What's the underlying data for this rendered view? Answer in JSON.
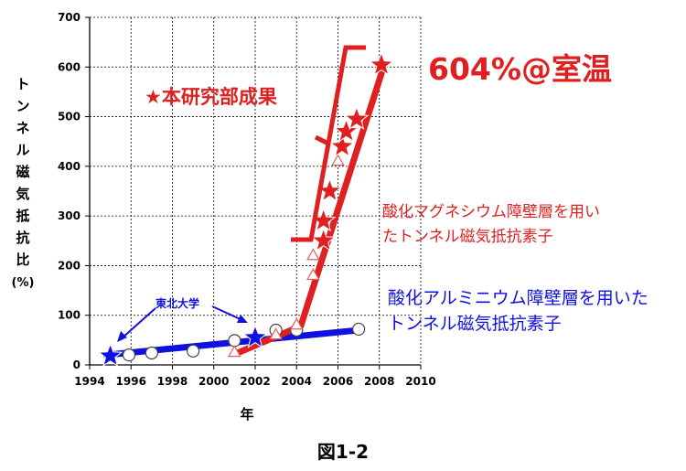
{
  "chart_data": {
    "type": "scatter",
    "xlabel": "年",
    "ylabel": "トンネル磁気抵抗比 (%)",
    "ylabel_lines": [
      "ト",
      "ン",
      "ネ",
      "ル",
      "磁",
      "気",
      "抵",
      "抗",
      "比",
      "(%)"
    ],
    "xlim": [
      1994,
      2010
    ],
    "ylim": [
      0,
      700
    ],
    "x_ticks": [
      1994,
      1996,
      1998,
      2000,
      2002,
      2004,
      2006,
      2008,
      2010
    ],
    "y_ticks": [
      0,
      100,
      200,
      300,
      400,
      500,
      600,
      700
    ],
    "grid": true,
    "series": [
      {
        "name": "酸化アルミニウム障壁層を用いたトンネル磁気抵抗素子",
        "color": "#1010e0",
        "trend": [
          [
            1994.8,
            20
          ],
          [
            2007,
            70
          ]
        ],
        "points": [
          {
            "x": 1995.0,
            "y": 18,
            "marker": "star"
          },
          {
            "x": 1995.9,
            "y": 20,
            "marker": "circle"
          },
          {
            "x": 1997.0,
            "y": 24,
            "marker": "circle"
          },
          {
            "x": 1999.0,
            "y": 28,
            "marker": "circle"
          },
          {
            "x": 2001.0,
            "y": 49,
            "marker": "circle"
          },
          {
            "x": 2002.0,
            "y": 55,
            "marker": "star"
          },
          {
            "x": 2003.0,
            "y": 70,
            "marker": "circle"
          },
          {
            "x": 2004.0,
            "y": 70,
            "marker": "circle"
          },
          {
            "x": 2007.0,
            "y": 72,
            "marker": "circle"
          }
        ]
      },
      {
        "name": "酸化マグネシウム障壁層を用いたトンネル磁気抵抗素子",
        "color": "#e02020",
        "trend": [
          [
            2001.2,
            25
          ],
          [
            2004.2,
            78
          ],
          [
            2008.2,
            600
          ]
        ],
        "points": [
          {
            "x": 2001.0,
            "y": 25,
            "marker": "triangle"
          },
          {
            "x": 2003.0,
            "y": 60,
            "marker": "triangle"
          },
          {
            "x": 2004.0,
            "y": 80,
            "marker": "triangle"
          },
          {
            "x": 2004.8,
            "y": 180,
            "marker": "triangle"
          },
          {
            "x": 2004.8,
            "y": 220,
            "marker": "triangle"
          },
          {
            "x": 2005.3,
            "y": 250,
            "marker": "star"
          },
          {
            "x": 2005.3,
            "y": 290,
            "marker": "star"
          },
          {
            "x": 2005.6,
            "y": 350,
            "marker": "star"
          },
          {
            "x": 2006.0,
            "y": 410,
            "marker": "triangle"
          },
          {
            "x": 2006.2,
            "y": 440,
            "marker": "star"
          },
          {
            "x": 2006.4,
            "y": 470,
            "marker": "star"
          },
          {
            "x": 2006.9,
            "y": 495,
            "marker": "star"
          },
          {
            "x": 2008.1,
            "y": 604,
            "marker": "star"
          }
        ]
      }
    ],
    "annotations": {
      "result_legend": "★本研究部成果",
      "room_temp_value": "604%@室温",
      "mgo_label_line1": "酸化マグネシウム障壁層を用い",
      "mgo_label_line2": "たトンネル磁気抵抗素子",
      "alo_label_line1": "酸化アルミニウム障壁層を用いた",
      "alo_label_line2": "トンネル磁気抵抗素子",
      "tohoku": "東北大学"
    },
    "colors": {
      "red": "#e02020",
      "blue": "#1010e0",
      "mgo_text": "#e02020",
      "alo_text": "#1010e0"
    }
  },
  "caption": "図1-2"
}
